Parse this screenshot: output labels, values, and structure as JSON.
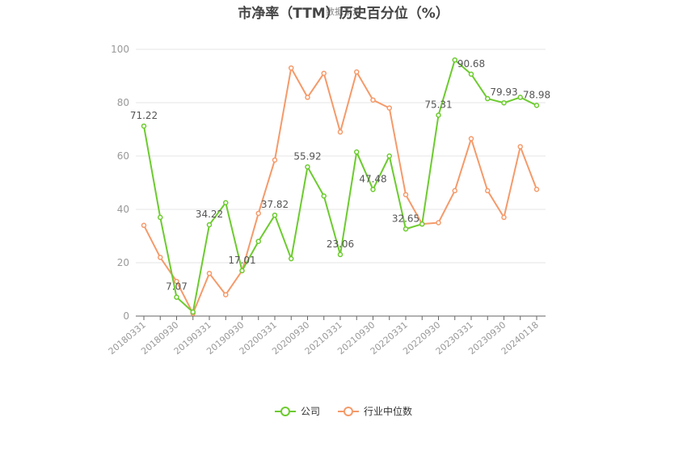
{
  "chart_data": {
    "type": "line",
    "title": "市净率（TTM）历史百分位（%）",
    "watermark": "数据来源",
    "ylim": [
      0,
      100
    ],
    "yticks": [
      0,
      20,
      40,
      60,
      80,
      100
    ],
    "grid": true,
    "legend_position": "bottom",
    "x": [
      "20180331",
      "20180630",
      "20180930",
      "20181231",
      "20190331",
      "20190630",
      "20190930",
      "20191231",
      "20200331",
      "20200630",
      "20200930",
      "20201231",
      "20210331",
      "20210630",
      "20210930",
      "20211231",
      "20220331",
      "20220630",
      "20220930",
      "20221231",
      "20230331",
      "20230630",
      "20230930",
      "20231231",
      "20240118"
    ],
    "xtick_labels": [
      "20180331",
      "20180930",
      "20190331",
      "20190930",
      "20200331",
      "20200930",
      "20210331",
      "20210930",
      "20220331",
      "20220930",
      "20230331",
      "20230930",
      "20240118"
    ],
    "series": [
      {
        "name": "公司",
        "color": "#6ccb2e",
        "values": [
          71.22,
          37.0,
          7.07,
          1.5,
          34.22,
          42.5,
          17.01,
          28.0,
          37.82,
          21.5,
          55.92,
          45.0,
          23.06,
          61.5,
          47.48,
          60.0,
          32.65,
          34.5,
          75.31,
          96.0,
          90.68,
          81.5,
          79.93,
          82.0,
          78.98
        ],
        "labels": {
          "0": "71.22",
          "2": "7.07",
          "4": "34.22",
          "6": "17.01",
          "8": "37.82",
          "10": "55.92",
          "12": "23.06",
          "14": "47.48",
          "16": "32.65",
          "18": "75.31",
          "20": "90.68",
          "22": "79.93",
          "24": "78.98"
        }
      },
      {
        "name": "行业中位数",
        "color": "#f59a6a",
        "values": [
          34.0,
          22.0,
          13.0,
          1.0,
          16.0,
          8.0,
          17.0,
          38.5,
          58.5,
          93.0,
          82.0,
          91.0,
          69.0,
          91.5,
          81.0,
          78.0,
          45.5,
          34.5,
          35.0,
          47.0,
          66.5,
          47.0,
          37.0,
          63.5,
          47.5
        ]
      }
    ]
  }
}
